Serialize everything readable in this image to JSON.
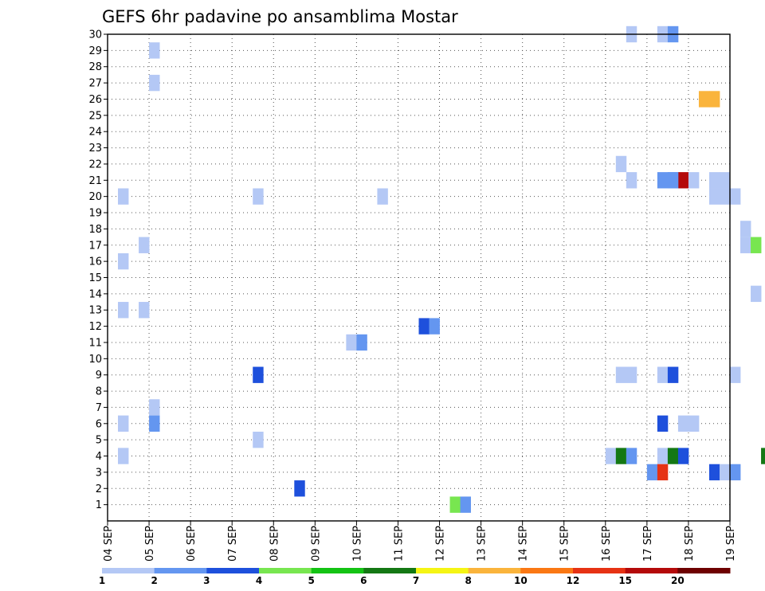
{
  "chart_data": {
    "type": "heatmap",
    "title": "GEFS 6hr padavine po ansamblima Mostar",
    "xlabel": "",
    "ylabel": "",
    "x_tick_labels": [
      "04 SEP",
      "05 SEP",
      "06 SEP",
      "07 SEP",
      "08 SEP",
      "09 SEP",
      "10 SEP",
      "11 SEP",
      "12 SEP",
      "13 SEP",
      "14 SEP",
      "15 SEP",
      "16 SEP",
      "17 SEP",
      "18 SEP",
      "19 SEP"
    ],
    "y_tick_labels": [
      "1",
      "2",
      "3",
      "4",
      "5",
      "6",
      "7",
      "8",
      "9",
      "10",
      "11",
      "12",
      "13",
      "14",
      "15",
      "16",
      "17",
      "18",
      "19",
      "20",
      "21",
      "22",
      "23",
      "24",
      "25",
      "26",
      "27",
      "28",
      "29",
      "30"
    ],
    "ylim": [
      0,
      30
    ],
    "grid": true,
    "time_step_hours": 6,
    "legend": {
      "placement": "bottom",
      "labels": [
        "1",
        "2",
        "3",
        "4",
        "5",
        "6",
        "7",
        "8",
        "10",
        "12",
        "15",
        "20"
      ],
      "colors": [
        "#b4c8f5",
        "#6496f0",
        "#1e50dc",
        "#78e650",
        "#14c314",
        "#147814",
        "#f5f514",
        "#fab43c",
        "#fa7814",
        "#e63214",
        "#b40a0a",
        "#6e0000"
      ]
    },
    "cells": [
      {
        "member": 30,
        "step": 50,
        "value": 1
      },
      {
        "member": 30,
        "step": 53,
        "value": 1
      },
      {
        "member": 30,
        "step": 54,
        "value": 2
      },
      {
        "member": 29,
        "step": 4,
        "value": 1
      },
      {
        "member": 27,
        "step": 4,
        "value": 1
      },
      {
        "member": 26,
        "step": 57,
        "value": 8
      },
      {
        "member": 26,
        "step": 58,
        "value": 8
      },
      {
        "member": 22,
        "step": 49,
        "value": 1
      },
      {
        "member": 21,
        "step": 50,
        "value": 1
      },
      {
        "member": 21,
        "step": 53,
        "value": 2
      },
      {
        "member": 21,
        "step": 54,
        "value": 2
      },
      {
        "member": 21,
        "step": 55,
        "value": 15
      },
      {
        "member": 21,
        "step": 56,
        "value": 1
      },
      {
        "member": 21,
        "step": 58,
        "value": 1
      },
      {
        "member": 21,
        "step": 59,
        "value": 1
      },
      {
        "member": 21,
        "step": 54,
        "value": 2
      },
      {
        "member": 20,
        "step": 1,
        "value": 1
      },
      {
        "member": 20,
        "step": 14,
        "value": 1
      },
      {
        "member": 20,
        "step": 26,
        "value": 1
      },
      {
        "member": 20,
        "step": 60,
        "value": 1
      },
      {
        "member": 20,
        "step": 58,
        "value": 1
      },
      {
        "member": 20,
        "step": 59,
        "value": 1
      },
      {
        "member": 18,
        "step": 61,
        "value": 1
      },
      {
        "member": 17,
        "step": 3,
        "value": 1
      },
      {
        "member": 17,
        "step": 61,
        "value": 1
      },
      {
        "member": 17,
        "step": 62,
        "value": 4
      },
      {
        "member": 17,
        "step": 65,
        "value": 2
      },
      {
        "member": 17,
        "step": 69,
        "value": 6
      },
      {
        "member": 17,
        "step": 70,
        "value": 6
      },
      {
        "member": 17,
        "step": 71,
        "value": 5
      },
      {
        "member": 16,
        "step": 1,
        "value": 1
      },
      {
        "member": 16,
        "step": 65,
        "value": 2
      },
      {
        "member": 16,
        "step": 66,
        "value": 2
      },
      {
        "member": 14,
        "step": 62,
        "value": 1
      },
      {
        "member": 13,
        "step": 1,
        "value": 1
      },
      {
        "member": 13,
        "step": 3,
        "value": 1
      },
      {
        "member": 13,
        "step": 67,
        "value": 1
      },
      {
        "member": 13,
        "step": 68,
        "value": 3
      },
      {
        "member": 13,
        "step": 69,
        "value": 2
      },
      {
        "member": 13,
        "step": 70,
        "value": 8
      },
      {
        "member": 13,
        "step": 71,
        "value": 3
      },
      {
        "member": 13,
        "step": 72,
        "value": 3
      },
      {
        "member": 12,
        "step": 30,
        "value": 3
      },
      {
        "member": 12,
        "step": 31,
        "value": 2
      },
      {
        "member": 11,
        "step": 23,
        "value": 1
      },
      {
        "member": 11,
        "step": 24,
        "value": 2
      },
      {
        "member": 9,
        "step": 14,
        "value": 3
      },
      {
        "member": 9,
        "step": 49,
        "value": 1
      },
      {
        "member": 9,
        "step": 50,
        "value": 1
      },
      {
        "member": 9,
        "step": 53,
        "value": 1
      },
      {
        "member": 9,
        "step": 54,
        "value": 3
      },
      {
        "member": 9,
        "step": 60,
        "value": 1
      },
      {
        "member": 7,
        "step": 4,
        "value": 1
      },
      {
        "member": 7,
        "step": 67,
        "value": 1
      },
      {
        "member": 6,
        "step": 1,
        "value": 1
      },
      {
        "member": 6,
        "step": 4,
        "value": 2
      },
      {
        "member": 6,
        "step": 53,
        "value": 3
      },
      {
        "member": 6,
        "step": 55,
        "value": 1
      },
      {
        "member": 6,
        "step": 56,
        "value": 1
      },
      {
        "member": 5,
        "step": 14,
        "value": 1
      },
      {
        "member": 4,
        "step": 1,
        "value": 1
      },
      {
        "member": 4,
        "step": 48,
        "value": 1
      },
      {
        "member": 4,
        "step": 49,
        "value": 6
      },
      {
        "member": 4,
        "step": 50,
        "value": 2
      },
      {
        "member": 4,
        "step": 53,
        "value": 1
      },
      {
        "member": 4,
        "step": 54,
        "value": 6
      },
      {
        "member": 4,
        "step": 55,
        "value": 3
      },
      {
        "member": 4,
        "step": 63,
        "value": 6
      },
      {
        "member": 4,
        "step": 68,
        "value": 1
      },
      {
        "member": 4,
        "step": 69,
        "value": 2
      },
      {
        "member": 4,
        "step": 70,
        "value": 1
      },
      {
        "member": 3,
        "step": 52,
        "value": 2
      },
      {
        "member": 3,
        "step": 53,
        "value": 12
      },
      {
        "member": 3,
        "step": 58,
        "value": 3
      },
      {
        "member": 3,
        "step": 59,
        "value": 1
      },
      {
        "member": 3,
        "step": 60,
        "value": 2
      },
      {
        "member": 2,
        "step": 18,
        "value": 3
      },
      {
        "member": 2,
        "step": 73,
        "value": 1
      },
      {
        "member": 1,
        "step": 33,
        "value": 4
      },
      {
        "member": 1,
        "step": 34,
        "value": 2
      },
      {
        "member": 0,
        "step": 68,
        "value": 4
      },
      {
        "member": 0,
        "step": 69,
        "value": 3
      },
      {
        "member": 0,
        "step": 70,
        "value": 12
      },
      {
        "member": 0,
        "step": 71,
        "value": 20
      },
      {
        "member": 0,
        "step": 72,
        "value": 10
      },
      {
        "member": 0,
        "step": 73,
        "value": 7
      }
    ]
  }
}
